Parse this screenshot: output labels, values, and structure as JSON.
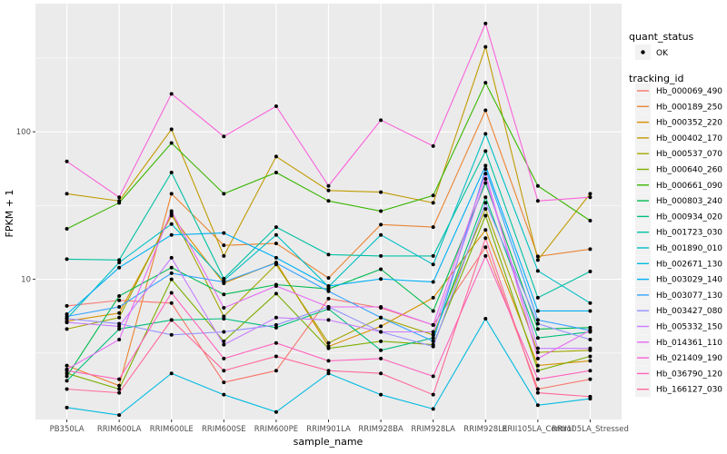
{
  "figure": {
    "legend": {
      "quant_status_title": "quant_status",
      "quant_ok_label": "OK",
      "tracking_title": "tracking_id"
    }
  },
  "chart_data": {
    "type": "line",
    "title": "",
    "xlabel": "sample_name",
    "ylabel": "FPKM + 1",
    "x_type": "categorical",
    "y_scale": "log10",
    "y_ticks": [
      10,
      100
    ],
    "y_minor_gridlines": [
      3.162,
      31.62,
      316.2
    ],
    "ylim": [
      1.12,
      740
    ],
    "grid": true,
    "panel_bg": "#EBEBEB",
    "grid_color": "#FFFFFF",
    "point_color": "#000000",
    "axis_text_color": "#4D4D4D",
    "tick_color": "#333333",
    "legend_position": "right",
    "legend_key_bg": "#F2F2F2",
    "quant_status_items": [
      "OK"
    ],
    "categories": [
      "PB350LA",
      "RRIM600LA",
      "RRIM600LE",
      "RRIM600SE",
      "RRIM600PE",
      "RRIM901LA",
      "RRIM928BA",
      "RRIM928LA",
      "RRIM928LE",
      "RRII105LA_Control",
      "RRII105LA_Stressed"
    ],
    "series": [
      {
        "name": "Hb_000069_490",
        "color": "#F8766D",
        "values": [
          6.6,
          7.2,
          6.9,
          2.0,
          2.4,
          7.4,
          6.4,
          4.9,
          16.5,
          1.8,
          2.1
        ]
      },
      {
        "name": "Hb_000189_250",
        "color": "#EA8331",
        "values": [
          2.6,
          1.9,
          38,
          17,
          17.5,
          10.2,
          23.5,
          22.6,
          140,
          14.3,
          16
        ]
      },
      {
        "name": "Hb_000352_220",
        "color": "#D89000",
        "values": [
          5.2,
          5.9,
          27,
          9.4,
          13,
          3.5,
          4.8,
          7.5,
          21.6,
          2.6,
          2.8
        ]
      },
      {
        "name": "Hb_000402_170",
        "color": "#C09B00",
        "values": [
          38,
          34,
          104,
          14.4,
          68,
          40,
          39,
          33,
          377,
          13.5,
          38
        ]
      },
      {
        "name": "Hb_000537_070",
        "color": "#A3A500",
        "values": [
          4.6,
          5.5,
          28,
          5.6,
          12.6,
          3.7,
          5.5,
          4.2,
          30,
          3.2,
          3.3
        ]
      },
      {
        "name": "Hb_000640_260",
        "color": "#7CAE00",
        "values": [
          2.3,
          1.8,
          10,
          3.8,
          8.0,
          3.4,
          3.8,
          3.6,
          27,
          2.4,
          3.0
        ]
      },
      {
        "name": "Hb_000661_090",
        "color": "#39B600",
        "values": [
          22,
          33,
          84,
          38,
          53,
          34,
          29,
          37,
          215,
          43,
          25
        ]
      },
      {
        "name": "Hb_000803_240",
        "color": "#00BB4E",
        "values": [
          2.2,
          7.7,
          12,
          7.9,
          9.2,
          8.6,
          11.7,
          6.1,
          45,
          4.6,
          4.7
        ]
      },
      {
        "name": "Hb_000934_020",
        "color": "#00BF7D",
        "values": [
          2.05,
          4.6,
          5.3,
          5.4,
          4.7,
          6.3,
          3.3,
          4.0,
          36,
          4.0,
          4.4
        ]
      },
      {
        "name": "Hb_001723_030",
        "color": "#00C1A3",
        "values": [
          13.7,
          13.5,
          53,
          10.1,
          22.6,
          14.7,
          14.4,
          14.4,
          74,
          7.5,
          11.3
        ]
      },
      {
        "name": "Hb_001890_010",
        "color": "#00BFC4",
        "values": [
          5.4,
          13.0,
          23.7,
          9.8,
          20,
          8.9,
          20,
          12.6,
          97,
          11.4,
          6.9
        ]
      },
      {
        "name": "Hb_002671_130",
        "color": "#00BAE0",
        "values": [
          1.35,
          1.2,
          2.3,
          1.65,
          1.26,
          2.3,
          1.65,
          1.32,
          5.4,
          1.4,
          1.55
        ]
      },
      {
        "name": "Hb_003029_140",
        "color": "#00B0F6",
        "values": [
          5.8,
          12,
          20,
          20.6,
          14,
          9.0,
          10.05,
          9.6,
          59,
          6.1,
          6.1
        ]
      },
      {
        "name": "Hb_003077_130",
        "color": "#35A2FF",
        "values": [
          5.6,
          6.5,
          11,
          9.6,
          12.9,
          8.3,
          5.5,
          3.8,
          56,
          5.3,
          4.5
        ]
      },
      {
        "name": "Hb_003427_080",
        "color": "#9590FF",
        "values": [
          5.4,
          5.0,
          4.2,
          4.4,
          4.9,
          6.5,
          4.4,
          3.5,
          33,
          5.0,
          3.9
        ]
      },
      {
        "name": "Hb_005332_150",
        "color": "#C77CFF",
        "values": [
          5.1,
          4.8,
          14,
          3.6,
          5.5,
          5.3,
          4.4,
          4.4,
          48,
          3.4,
          3.4
        ]
      },
      {
        "name": "Hb_014361_110",
        "color": "#E76BF3",
        "values": [
          2.45,
          3.9,
          29,
          6.4,
          9.0,
          6.5,
          6.5,
          4.9,
          52,
          2.9,
          4.5
        ]
      },
      {
        "name": "Hb_021409_190",
        "color": "#FA62DB",
        "values": [
          63,
          36,
          181,
          93,
          149,
          43,
          120,
          80,
          543,
          34,
          36
        ]
      },
      {
        "name": "Hb_036790_120",
        "color": "#FF62BC",
        "values": [
          2.4,
          2.1,
          8.1,
          2.9,
          3.7,
          2.8,
          2.9,
          2.2,
          14.4,
          2.1,
          2.4
        ]
      },
      {
        "name": "Hb_166127_030",
        "color": "#FF6A98",
        "values": [
          1.8,
          1.7,
          5.3,
          2.4,
          3.0,
          2.4,
          2.3,
          1.65,
          19,
          1.7,
          1.6
        ]
      }
    ]
  }
}
